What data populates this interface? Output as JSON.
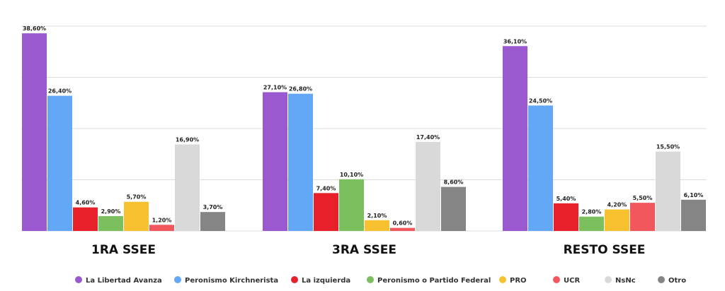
{
  "chart_data": {
    "type": "bar",
    "title": "",
    "xlabel": "",
    "ylabel": "",
    "ylim": [
      0,
      40
    ],
    "grid": true,
    "legend_position": "bottom",
    "categories": [
      "1RA SSEE",
      "3RA SSEE",
      "RESTO SSEE"
    ],
    "series": [
      {
        "name": "La Libertad Avanza",
        "color": "#9b59d0",
        "values": [
          38.6,
          27.1,
          36.1
        ],
        "labels": [
          "38,60%",
          "27,10%",
          "36,10%"
        ]
      },
      {
        "name": "Peronismo Kirchnerista",
        "color": "#62a8f7",
        "values": [
          26.4,
          26.8,
          24.5
        ],
        "labels": [
          "26,40%",
          "26,80%",
          "24,50%"
        ]
      },
      {
        "name": "La izquierda",
        "color": "#e8202a",
        "values": [
          4.6,
          7.4,
          5.4
        ],
        "labels": [
          "4,60%",
          "7,40%",
          "5,40%"
        ]
      },
      {
        "name": "Peronismo o Partido Federal",
        "color": "#7cbf5e",
        "values": [
          2.9,
          10.1,
          2.8
        ],
        "labels": [
          "2,90%",
          "10,10%",
          "2,80%"
        ]
      },
      {
        "name": "PRO",
        "color": "#f7c12f",
        "values": [
          5.7,
          2.1,
          4.2
        ],
        "labels": [
          "5,70%",
          "2,10%",
          "4,20%"
        ]
      },
      {
        "name": "UCR",
        "color": "#f2575d",
        "values": [
          1.2,
          0.6,
          5.5
        ],
        "labels": [
          "1,20%",
          "0,60%",
          "5,50%"
        ]
      },
      {
        "name": "NsNc",
        "color": "#d9d9d9",
        "values": [
          16.9,
          17.4,
          15.5
        ],
        "labels": [
          "16,90%",
          "17,40%",
          "15,50%"
        ]
      },
      {
        "name": "Otro",
        "color": "#858585",
        "values": [
          3.7,
          8.6,
          6.1
        ],
        "labels": [
          "3,70%",
          "8,60%",
          "6,10%"
        ]
      }
    ]
  }
}
